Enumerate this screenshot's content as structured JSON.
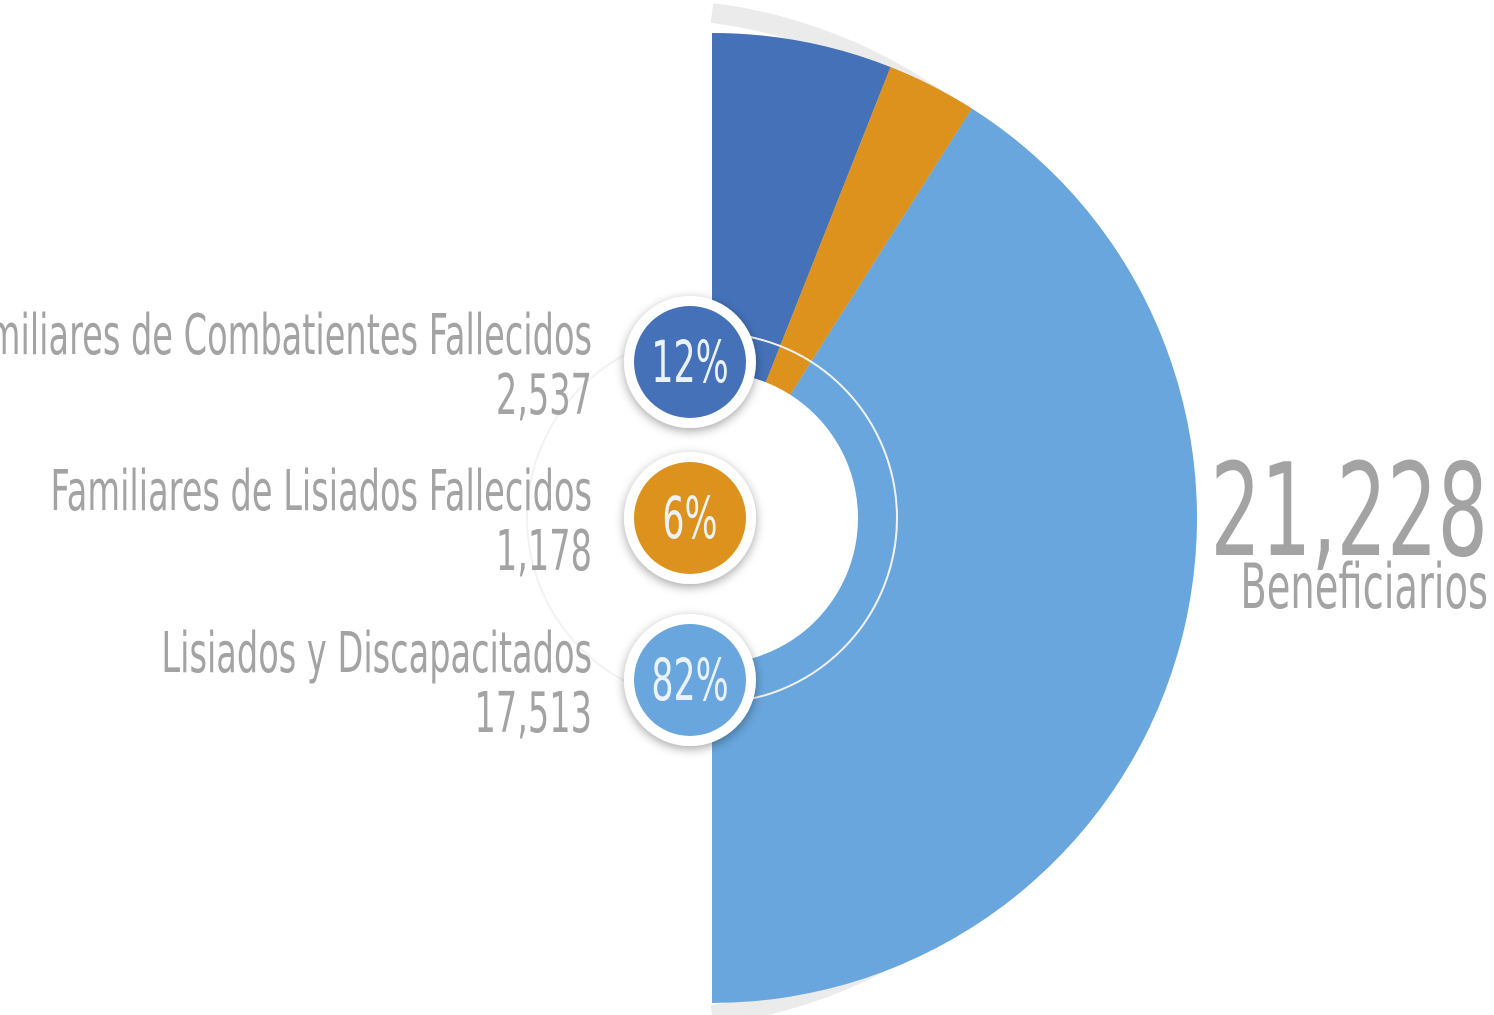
{
  "chart_data": {
    "type": "pie",
    "categories": [
      "Familiares de Combatientes Fallecidos",
      "Familiares de Lisiados Fallecidos",
      "Lisiados y Discapacitados"
    ],
    "values": [
      12,
      6,
      82
    ],
    "value_labels": [
      "12%",
      "6%",
      "82%"
    ],
    "counts": [
      "2,537",
      "1,178",
      "17,513"
    ],
    "colors": [
      "#4471b8",
      "#dc921c",
      "#68a6dd"
    ],
    "total": "21,228",
    "total_label": "Beneficiarios"
  }
}
